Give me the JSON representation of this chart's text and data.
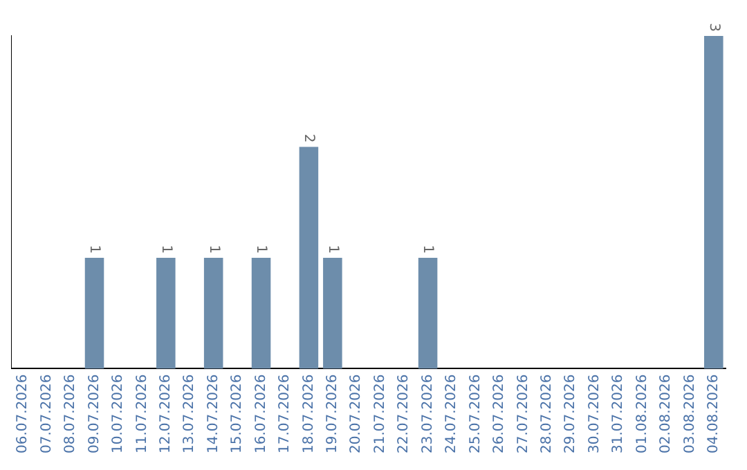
{
  "chart_data": {
    "type": "bar",
    "categories": [
      "06.07.2026",
      "07.07.2026",
      "08.07.2026",
      "09.07.2026",
      "10.07.2026",
      "11.07.2026",
      "12.07.2026",
      "13.07.2026",
      "14.07.2026",
      "15.07.2026",
      "16.07.2026",
      "17.07.2026",
      "18.07.2026",
      "19.07.2026",
      "20.07.2026",
      "21.07.2026",
      "22.07.2026",
      "23.07.2026",
      "24.07.2026",
      "25.07.2026",
      "26.07.2026",
      "27.07.2026",
      "28.07.2026",
      "29.07.2026",
      "30.07.2026",
      "31.07.2026",
      "01.08.2026",
      "02.08.2026",
      "03.08.2026",
      "04.08.2026"
    ],
    "values": [
      0,
      0,
      0,
      1,
      0,
      0,
      1,
      0,
      1,
      0,
      1,
      0,
      2,
      1,
      0,
      0,
      0,
      1,
      0,
      0,
      0,
      0,
      0,
      0,
      0,
      0,
      0,
      0,
      0,
      3
    ],
    "value_labels": [
      null,
      null,
      null,
      "1",
      null,
      null,
      "1",
      null,
      "1",
      null,
      "1",
      null,
      "2",
      "1",
      null,
      null,
      null,
      "1",
      null,
      null,
      null,
      null,
      null,
      null,
      null,
      null,
      null,
      null,
      null,
      "3"
    ],
    "color": "#6d8dab",
    "tick_labels": "x",
    "grid": false,
    "legend": false
  }
}
